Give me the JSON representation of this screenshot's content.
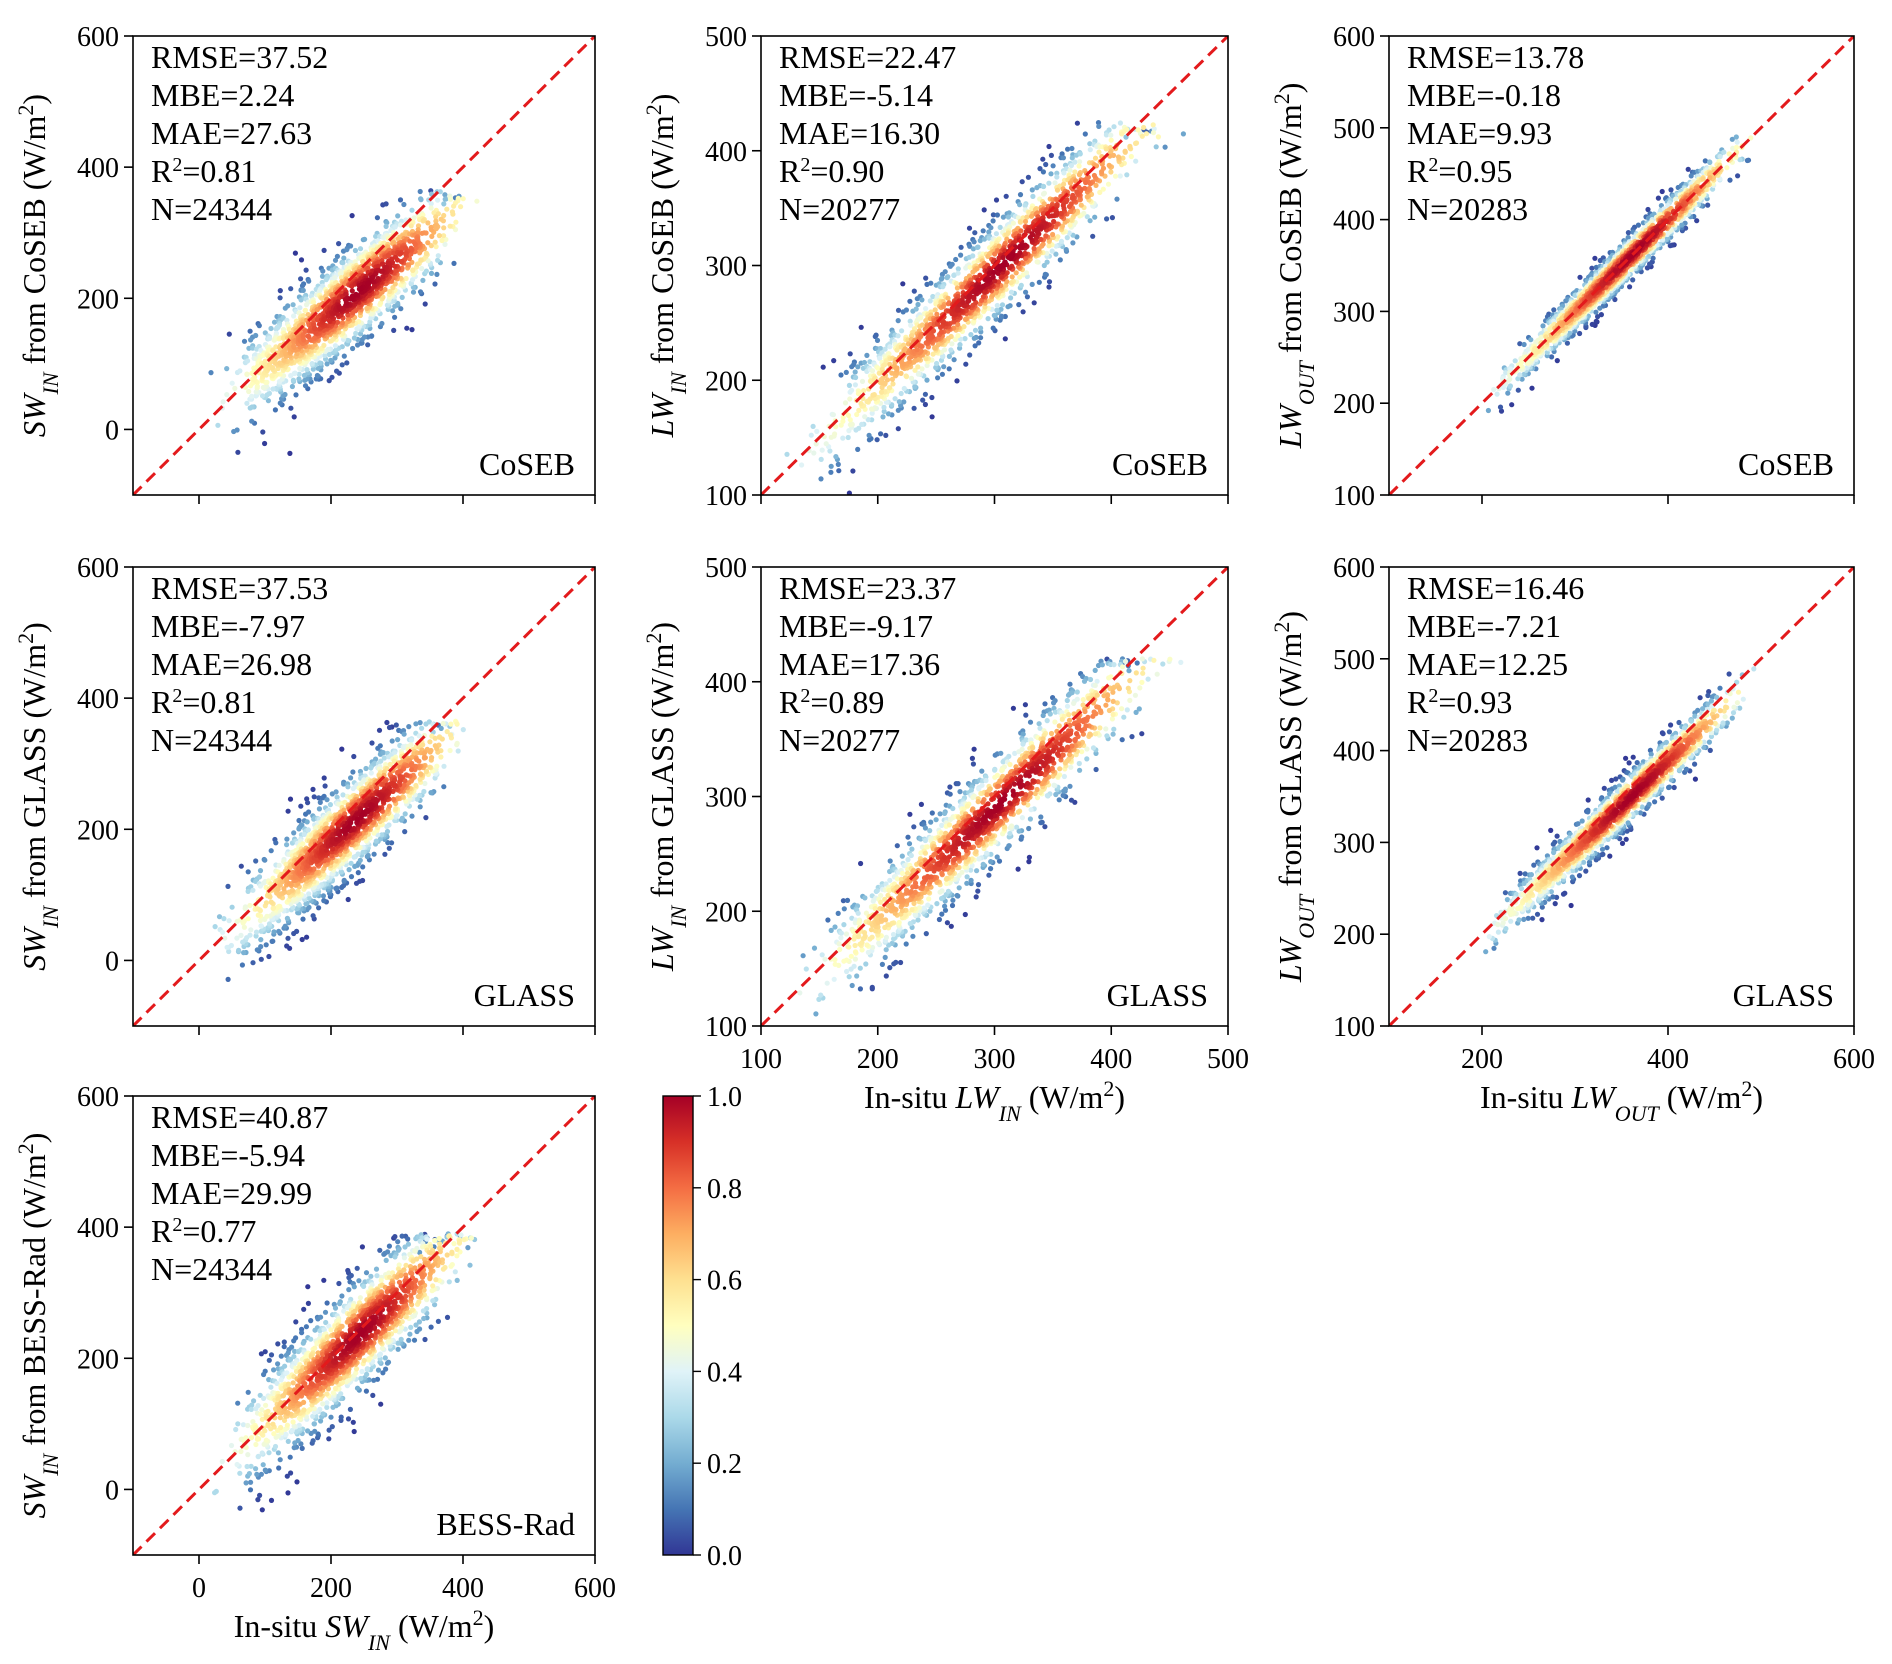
{
  "figure": {
    "x_tick_values_sw": [
      "0",
      "200",
      "400",
      "600"
    ],
    "colorbar": {
      "ticks": [
        "0.0",
        "0.2",
        "0.4",
        "0.6",
        "0.8",
        "1.0"
      ],
      "colors": [
        "#313695",
        "#4575b4",
        "#74add1",
        "#abd9e9",
        "#e0f3f8",
        "#ffffbf",
        "#fee090",
        "#fdae61",
        "#f46d43",
        "#d73027",
        "#a50026"
      ]
    },
    "reference_line_color": "#e31a1c"
  },
  "chart_data": [
    {
      "type": "scatter",
      "panel": "a",
      "product": "CoSEB",
      "variable": "SW_IN",
      "ylabel": {
        "sym": "SW",
        "sub": "IN",
        "rest": " from CoSEB (W/m",
        "sup": "2",
        "end": ")"
      },
      "xlabel": null,
      "xlim": [
        -100,
        600
      ],
      "ylim": [
        -100,
        600
      ],
      "xticks": [
        0,
        200,
        400,
        600
      ],
      "yticks": [
        0,
        200,
        400,
        600
      ],
      "stats": {
        "rmse": "RMSE=37.52",
        "mbe": "MBE=2.24",
        "mae": "MAE=27.63",
        "r2_prefix": "R",
        "r2_sup": "2",
        "r2_value": "=0.81",
        "n": "N=24344"
      },
      "cloud": {
        "x_range": [
          5,
          440
        ],
        "slope": 0.82,
        "intercept": 12,
        "spread": 40,
        "y_cap": 365
      }
    },
    {
      "type": "scatter",
      "panel": "b",
      "product": "CoSEB",
      "variable": "LW_IN",
      "ylabel": {
        "sym": "LW",
        "sub": "IN",
        "rest": " from CoSEB (W/m",
        "sup": "2",
        "end": ")"
      },
      "xlabel": null,
      "xlim": [
        100,
        500
      ],
      "ylim": [
        100,
        500
      ],
      "xticks": [
        100,
        200,
        300,
        400,
        500
      ],
      "yticks": [
        100,
        200,
        300,
        400,
        500
      ],
      "stats": {
        "rmse": "RMSE=22.47",
        "mbe": "MBE=-5.14",
        "mae": "MAE=16.30",
        "r2_prefix": "R",
        "r2_sup": "2",
        "r2_value": "=0.90",
        "n": "N=20277"
      },
      "cloud": {
        "x_range": [
          110,
          470
        ],
        "slope": 0.98,
        "intercept": 0,
        "spread": 22,
        "y_cap": 425
      }
    },
    {
      "type": "scatter",
      "panel": "c",
      "product": "CoSEB",
      "variable": "LW_OUT",
      "ylabel": {
        "sym": "LW",
        "sub": "OUT",
        "rest": " from CoSEB (W/m",
        "sup": "2",
        "end": ")"
      },
      "xlabel": null,
      "xlim": [
        100,
        600
      ],
      "ylim": [
        100,
        600
      ],
      "xticks": [
        200,
        400,
        600
      ],
      "yticks": [
        100,
        200,
        300,
        400,
        500,
        600
      ],
      "stats": {
        "rmse": "RMSE=13.78",
        "mbe": "MBE=-0.18",
        "mae": "MAE=9.93",
        "r2_prefix": "R",
        "r2_sup": "2",
        "r2_value": "=0.95",
        "n": "N=20283"
      },
      "cloud": {
        "x_range": [
          190,
          505
        ],
        "slope": 1.0,
        "intercept": 0,
        "spread": 12,
        "y_cap": 505
      }
    },
    {
      "type": "scatter",
      "panel": "d",
      "product": "GLASS",
      "variable": "SW_IN",
      "ylabel": {
        "sym": "SW",
        "sub": "IN",
        "rest": " from GLASS (W/m",
        "sup": "2",
        "end": ")"
      },
      "xlabel": null,
      "xlim": [
        -100,
        600
      ],
      "ylim": [
        -100,
        600
      ],
      "xticks": [
        0,
        200,
        400,
        600
      ],
      "yticks": [
        0,
        200,
        400,
        600
      ],
      "stats": {
        "rmse": "RMSE=37.53",
        "mbe": "MBE=-7.97",
        "mae": "MAE=26.98",
        "r2_prefix": "R",
        "r2_sup": "2",
        "r2_value": "=0.81",
        "n": "N=24344"
      },
      "cloud": {
        "x_range": [
          5,
          430
        ],
        "slope": 0.9,
        "intercept": 0,
        "spread": 38,
        "y_cap": 365
      }
    },
    {
      "type": "scatter",
      "panel": "e",
      "product": "GLASS",
      "variable": "LW_IN",
      "ylabel": {
        "sym": "LW",
        "sub": "IN",
        "rest": " from GLASS (W/m",
        "sup": "2",
        "end": ")"
      },
      "xlabel": {
        "pre": "In-situ ",
        "sym": "LW",
        "sub": "IN",
        "rest": " (W/m",
        "sup": "2",
        "end": ")"
      },
      "xlim": [
        100,
        500
      ],
      "ylim": [
        100,
        500
      ],
      "xticks": [
        100,
        200,
        300,
        400,
        500
      ],
      "yticks": [
        100,
        200,
        300,
        400,
        500
      ],
      "stats": {
        "rmse": "RMSE=23.37",
        "mbe": "MBE=-9.17",
        "mae": "MAE=17.36",
        "r2_prefix": "R",
        "r2_sup": "2",
        "r2_value": "=0.89",
        "n": "N=20277"
      },
      "cloud": {
        "x_range": [
          105,
          470
        ],
        "slope": 0.97,
        "intercept": -2,
        "spread": 23,
        "y_cap": 420
      }
    },
    {
      "type": "scatter",
      "panel": "f",
      "product": "GLASS",
      "variable": "LW_OUT",
      "ylabel": {
        "sym": "LW",
        "sub": "OUT",
        "rest": " from GLASS (W/m",
        "sup": "2",
        "end": ")"
      },
      "xlabel": {
        "pre": "In-situ ",
        "sym": "LW",
        "sub": "OUT",
        "rest": " (W/m",
        "sup": "2",
        "end": ")"
      },
      "xlim": [
        100,
        600
      ],
      "ylim": [
        100,
        600
      ],
      "xticks": [
        200,
        400,
        600
      ],
      "yticks": [
        100,
        200,
        300,
        400,
        500,
        600
      ],
      "stats": {
        "rmse": "RMSE=16.46",
        "mbe": "MBE=-7.21",
        "mae": "MAE=12.25",
        "r2_prefix": "R",
        "r2_sup": "2",
        "r2_value": "=0.93",
        "n": "N=20283"
      },
      "cloud": {
        "x_range": [
          185,
          505
        ],
        "slope": 0.97,
        "intercept": 0,
        "spread": 14,
        "y_cap": 495
      }
    },
    {
      "type": "scatter",
      "panel": "g",
      "product": "BESS-Rad",
      "variable": "SW_IN",
      "ylabel": {
        "sym": "SW",
        "sub": "IN",
        "rest": " from BESS-Rad (W/m",
        "sup": "2",
        "end": ")"
      },
      "xlabel": {
        "pre": "In-situ ",
        "sym": "SW",
        "sub": "IN",
        "rest": " (W/m",
        "sup": "2",
        "end": ")"
      },
      "xlim": [
        -100,
        600
      ],
      "ylim": [
        -100,
        600
      ],
      "xticks": [
        0,
        200,
        400,
        600
      ],
      "yticks": [
        0,
        200,
        400,
        600
      ],
      "stats": {
        "rmse": "RMSE=40.87",
        "mbe": "MBE=-5.94",
        "mae": "MAE=29.99",
        "r2_prefix": "R",
        "r2_sup": "2",
        "r2_value": "=0.77",
        "n": "N=24344"
      },
      "cloud": {
        "x_range": [
          5,
          440
        ],
        "slope": 0.95,
        "intercept": 5,
        "spread": 44,
        "y_cap": 390
      }
    }
  ]
}
